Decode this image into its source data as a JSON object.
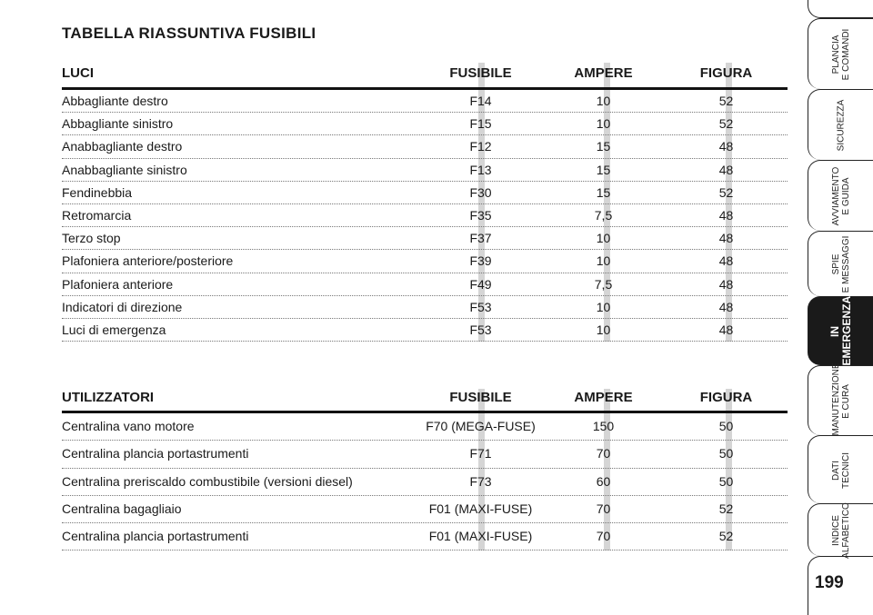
{
  "title": "TABELLA RIASSUNTIVA FUSIBILI",
  "table_luci": {
    "headers": [
      "LUCI",
      "FUSIBILE",
      "AMPERE",
      "FIGURA"
    ],
    "rows": [
      [
        "Abbagliante destro",
        "F14",
        "10",
        "52"
      ],
      [
        "Abbagliante sinistro",
        "F15",
        "10",
        "52"
      ],
      [
        "Anabbagliante destro",
        "F12",
        "15",
        "48"
      ],
      [
        "Anabbagliante sinistro",
        "F13",
        "15",
        "48"
      ],
      [
        "Fendinebbia",
        "F30",
        "15",
        "52"
      ],
      [
        "Retromarcia",
        "F35",
        "7,5",
        "48"
      ],
      [
        "Terzo stop",
        "F37",
        "10",
        "48"
      ],
      [
        "Plafoniera anteriore/posteriore",
        "F39",
        "10",
        "48"
      ],
      [
        "Plafoniera anteriore",
        "F49",
        "7,5",
        "48"
      ],
      [
        "Indicatori di direzione",
        "F53",
        "10",
        "48"
      ],
      [
        "Luci di emergenza",
        "F53",
        "10",
        "48"
      ]
    ]
  },
  "table_utilizzatori": {
    "headers": [
      "UTILIZZATORI",
      "FUSIBILE",
      "AMPERE",
      "FIGURA"
    ],
    "rows": [
      [
        "Centralina vano motore",
        "F70 (MEGA-FUSE)",
        "150",
        "50"
      ],
      [
        "Centralina plancia portastrumenti",
        "F71",
        "70",
        "50"
      ],
      [
        "Centralina preriscaldo combustibile (versioni diesel)",
        "F73",
        "60",
        "50"
      ],
      [
        "Centralina bagagliaio",
        "F01 (MAXI-FUSE)",
        "70",
        "52"
      ],
      [
        "Centralina plancia portastrumenti",
        "F01 (MAXI-FUSE)",
        "70",
        "52"
      ]
    ]
  },
  "tabs": [
    {
      "label": "PLANCIA\nE COMANDI",
      "active": false
    },
    {
      "label": "SICUREZZA",
      "active": false
    },
    {
      "label": "AVVIAMENTO\nE GUIDA",
      "active": false
    },
    {
      "label": "SPIE\nE MESSAGGI",
      "active": false
    },
    {
      "label": "IN\nEMERGENZA",
      "active": true
    },
    {
      "label": "MANUTENZIONE\nE CURA",
      "active": false
    },
    {
      "label": "DATI\nTECNICI",
      "active": false
    },
    {
      "label": "INDICE\nALFABETICO",
      "active": false
    }
  ],
  "page_number": "199"
}
